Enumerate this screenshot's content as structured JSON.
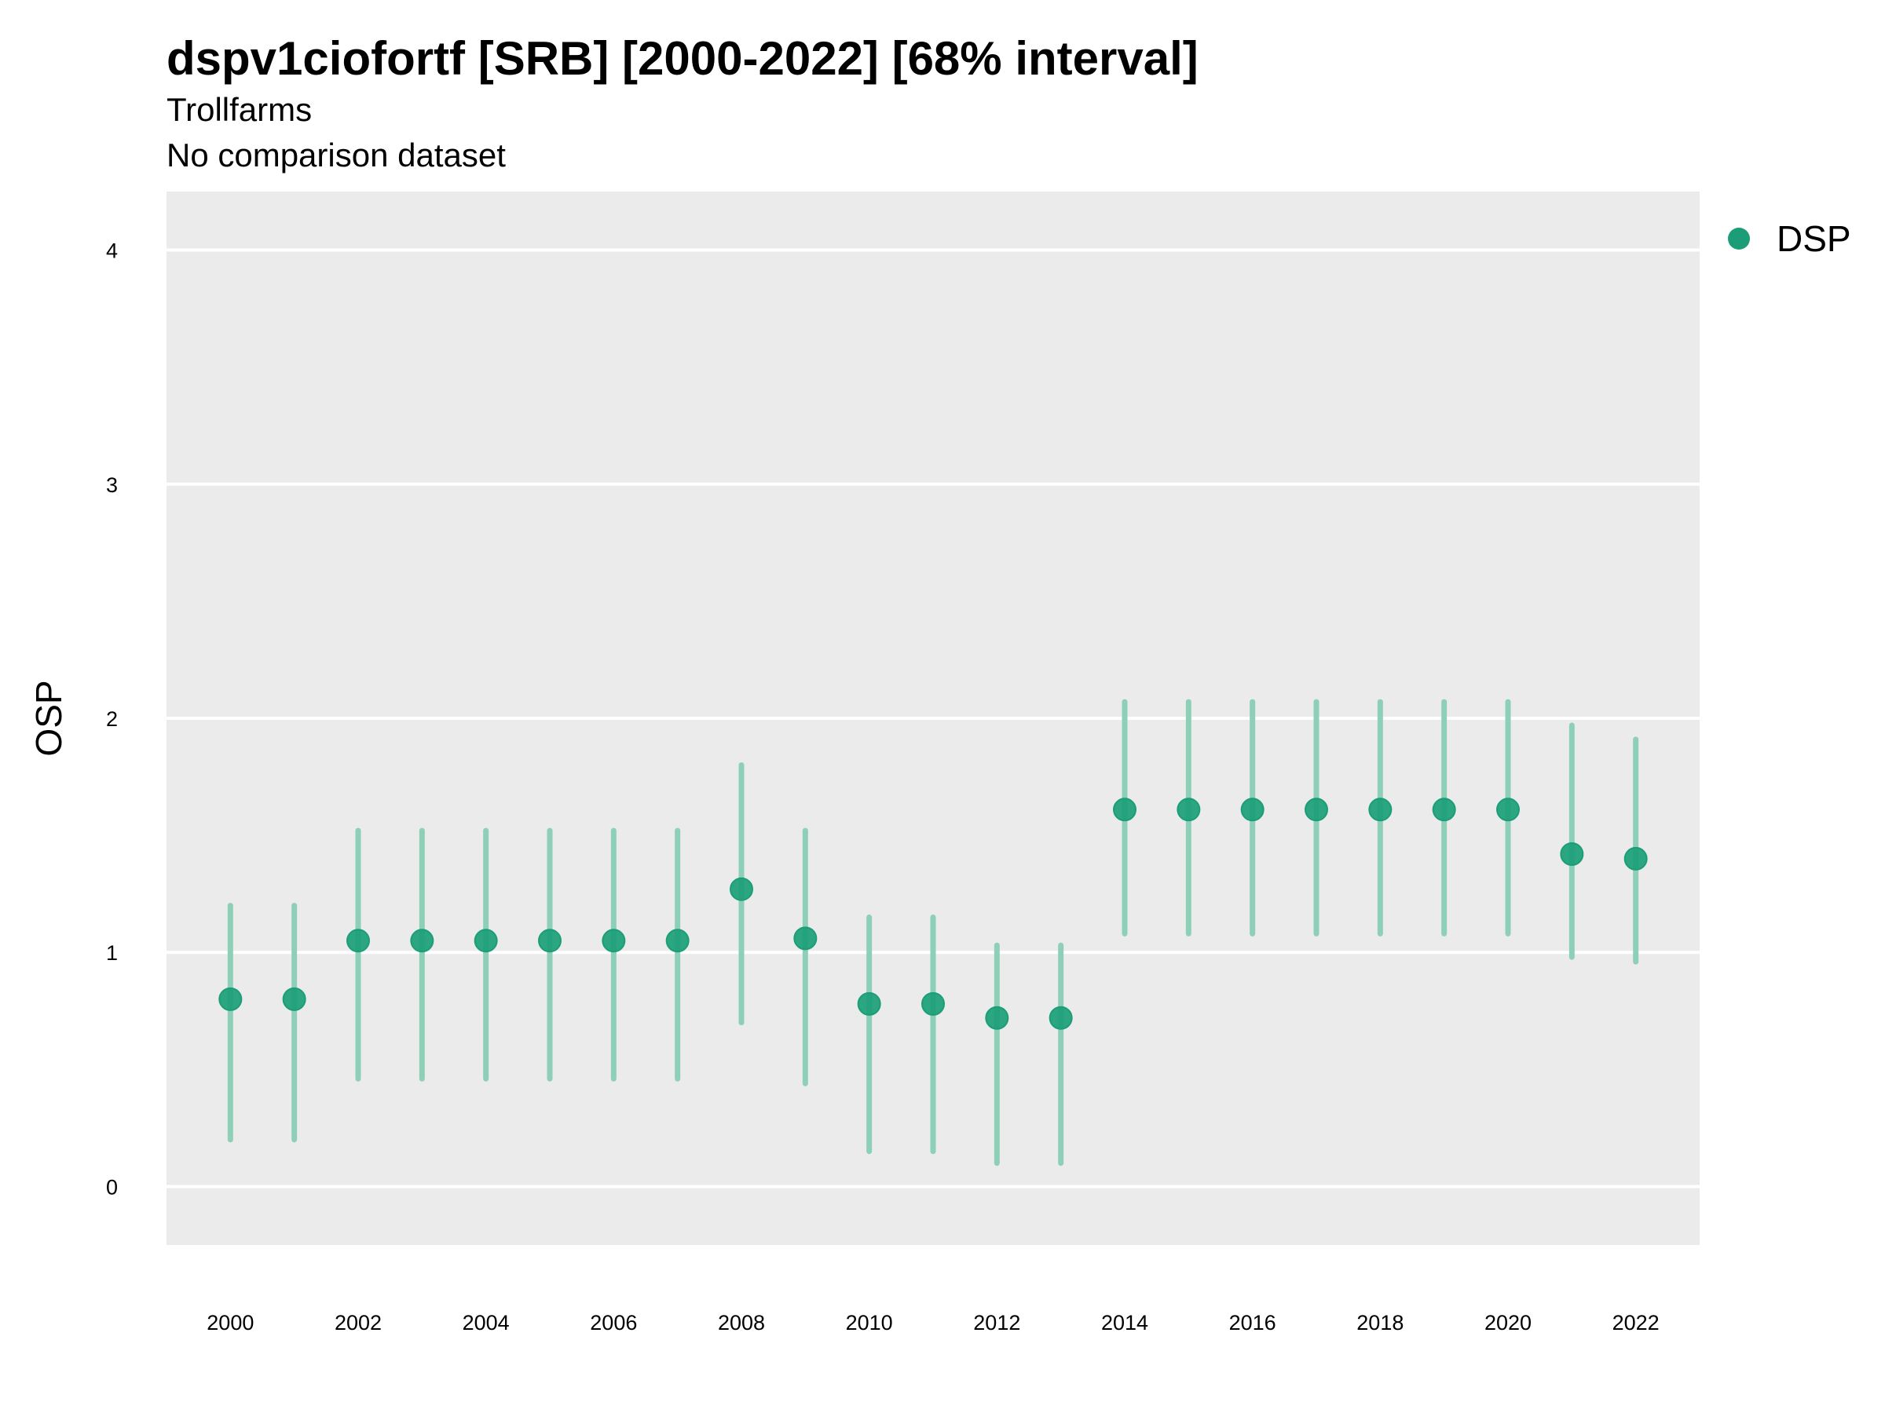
{
  "title": "dspv1ciofortf [SRB] [2000-2022] [68% interval]",
  "subtitle1": "Trollfarms",
  "subtitle2": "No comparison dataset",
  "colors": {
    "point": "#1b9e77",
    "interval": "#8ecfb8",
    "panel": "#ebebeb",
    "grid": "#ffffff"
  },
  "chart_data": {
    "type": "scatter",
    "title": "dspv1ciofortf [SRB] [2000-2022] [68% interval]",
    "ylabel": "OSP",
    "xlabel": "",
    "ylim": [
      -0.25,
      4.25
    ],
    "xlim": [
      1999,
      2023
    ],
    "yticks": [
      0,
      1,
      2,
      3,
      4
    ],
    "xticks": [
      2000,
      2002,
      2004,
      2006,
      2008,
      2010,
      2012,
      2014,
      2016,
      2018,
      2020,
      2022
    ],
    "grid": true,
    "legend_position": "top-right",
    "series": [
      {
        "name": "DSP",
        "x": [
          2000,
          2001,
          2002,
          2003,
          2004,
          2005,
          2006,
          2007,
          2008,
          2009,
          2010,
          2011,
          2012,
          2013,
          2014,
          2015,
          2016,
          2017,
          2018,
          2019,
          2020,
          2021,
          2022
        ],
        "y": [
          0.8,
          0.8,
          1.05,
          1.05,
          1.05,
          1.05,
          1.05,
          1.05,
          1.27,
          1.06,
          0.78,
          0.78,
          0.72,
          0.72,
          1.61,
          1.61,
          1.61,
          1.61,
          1.61,
          1.61,
          1.61,
          1.42,
          1.4
        ],
        "lower": [
          0.2,
          0.2,
          0.46,
          0.46,
          0.46,
          0.46,
          0.46,
          0.46,
          0.7,
          0.44,
          0.15,
          0.15,
          0.1,
          0.1,
          1.08,
          1.08,
          1.08,
          1.08,
          1.08,
          1.08,
          1.08,
          0.98,
          0.96
        ],
        "upper": [
          1.2,
          1.2,
          1.52,
          1.52,
          1.52,
          1.52,
          1.52,
          1.52,
          1.8,
          1.52,
          1.15,
          1.15,
          1.03,
          1.03,
          2.07,
          2.07,
          2.07,
          2.07,
          2.07,
          2.07,
          2.07,
          1.97,
          1.91
        ]
      }
    ]
  }
}
